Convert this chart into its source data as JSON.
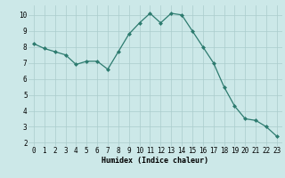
{
  "x": [
    0,
    1,
    2,
    3,
    4,
    5,
    6,
    7,
    8,
    9,
    10,
    11,
    12,
    13,
    14,
    15,
    16,
    17,
    18,
    19,
    20,
    21,
    22,
    23
  ],
  "y": [
    8.2,
    7.9,
    7.7,
    7.5,
    6.9,
    7.1,
    7.1,
    6.6,
    7.7,
    8.8,
    9.5,
    10.1,
    9.5,
    10.1,
    10.0,
    9.0,
    8.0,
    7.0,
    5.5,
    4.3,
    3.5,
    3.4,
    3.0,
    2.4
  ],
  "xlabel": "Humidex (Indice chaleur)",
  "xlim": [
    -0.5,
    23.5
  ],
  "ylim": [
    1.8,
    10.6
  ],
  "yticks": [
    2,
    3,
    4,
    5,
    6,
    7,
    8,
    9,
    10
  ],
  "xticks": [
    0,
    1,
    2,
    3,
    4,
    5,
    6,
    7,
    8,
    9,
    10,
    11,
    12,
    13,
    14,
    15,
    16,
    17,
    18,
    19,
    20,
    21,
    22,
    23
  ],
  "line_color": "#2d7b6f",
  "bg_color": "#cce8e8",
  "grid_color": "#aacccc",
  "label_fontsize": 6,
  "tick_fontsize": 5.5
}
